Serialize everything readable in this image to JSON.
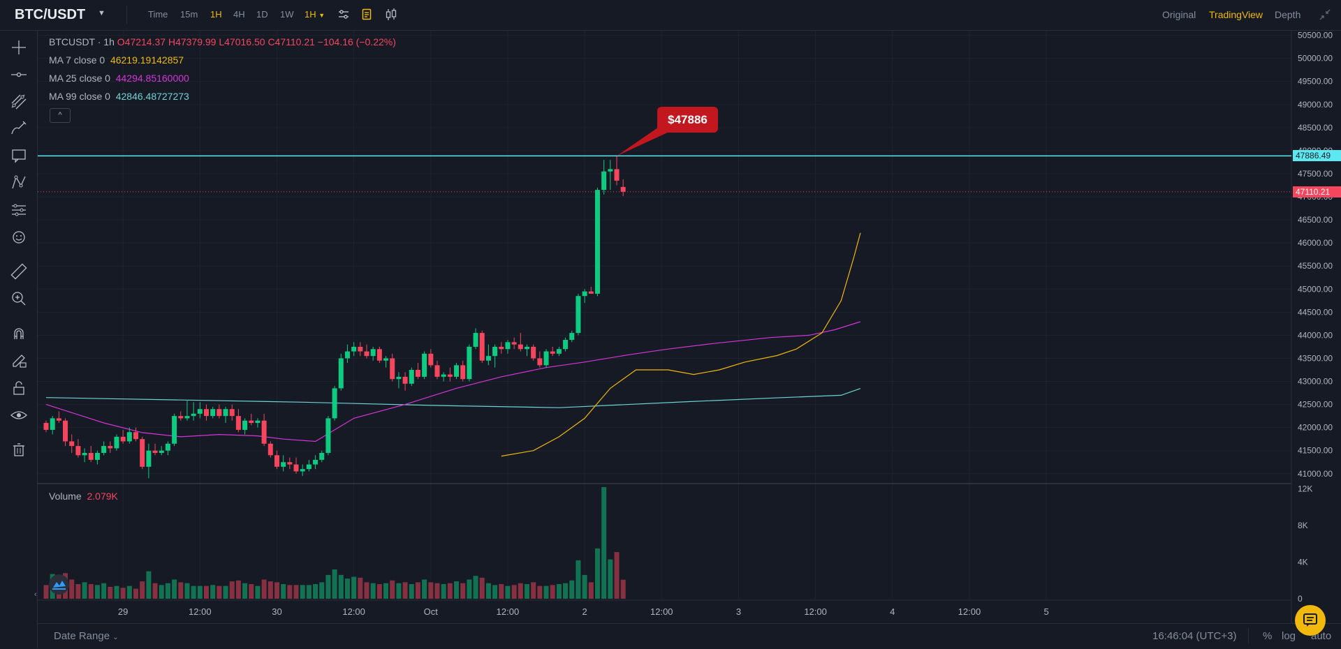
{
  "header": {
    "pair": "BTC/USDT",
    "timeframes": [
      "Time",
      "15m",
      "1H",
      "4H",
      "1D",
      "1W"
    ],
    "active_timeframe": "1H",
    "interval_dropdown": "1H",
    "views": [
      "Original",
      "TradingView",
      "Depth"
    ],
    "active_view": "TradingView"
  },
  "left_toolbar": {
    "tools": [
      "crosshair-icon",
      "horizontal-ray-icon",
      "trend-lines-icon",
      "brush-icon",
      "text-icon",
      "patterns-icon",
      "prediction-icon",
      "emoji-icon",
      "ruler-icon",
      "zoom-in-icon",
      "magnet-icon",
      "lock-drawings-pencil-icon",
      "unlock-icon",
      "eye-icon",
      "trash-icon"
    ]
  },
  "legend": {
    "symbol": "BTCUSDT · 1h",
    "open": "O47214.37",
    "high": "H47379.99",
    "low": "L47016.50",
    "close": "C47110.21",
    "change": "−104.16 (−0.22%)",
    "ma7_label": "MA 7 close 0",
    "ma7_value": "46219.19142857",
    "ma25_label": "MA 25 close 0",
    "ma25_value": "44294.85160000",
    "ma99_label": "MA 99 close 0",
    "ma99_value": "42846.48727273",
    "collapse": "^",
    "volume_label": "Volume",
    "volume_value": "2.079K"
  },
  "annotation": {
    "callout_text": "$47886",
    "horizontal_line_label": "47886.49",
    "last_price_label": "47110.21"
  },
  "bottom": {
    "date_range": "Date Range",
    "clock": "16:46:04 (UTC+3)",
    "percent": "%",
    "log": "log",
    "auto": "auto"
  },
  "colors": {
    "background": "#161a25",
    "up": "#0ecb81",
    "down": "#f6465d",
    "ma7": "#f0b90b",
    "ma25": "#d535d8",
    "ma99": "#6ed3d3",
    "horizontal_line": "#5ce8f0",
    "active": "#f0b90b"
  },
  "chart_data": {
    "type": "candlestick",
    "price_axis": {
      "ticks": [
        41000,
        41500,
        42000,
        42500,
        43000,
        43500,
        44000,
        44500,
        45000,
        45500,
        46000,
        46500,
        47000,
        47500,
        48000,
        48500,
        49000,
        49500,
        50000,
        50500
      ],
      "tick_labels": [
        "41000.00",
        "41500.00",
        "42000.00",
        "42500.00",
        "43000.00",
        "43500.00",
        "44000.00",
        "44500.00",
        "45000.00",
        "45500.00",
        "46000.00",
        "46500.00",
        "47000.00",
        "47500.00",
        "48000.00",
        "48500.00",
        "49000.00",
        "49500.00",
        "50000.00",
        "50500.00"
      ],
      "range": [
        40800,
        50600
      ]
    },
    "volume_axis": {
      "ticks": [
        0,
        4000,
        8000,
        12000
      ],
      "tick_labels": [
        "0",
        "4K",
        "8K",
        "12K"
      ],
      "range": [
        0,
        12500
      ]
    },
    "time_axis": {
      "labels": [
        "29",
        "12:00",
        "30",
        "12:00",
        "Oct",
        "12:00",
        "2",
        "12:00",
        "3",
        "12:00",
        "4",
        "12:00",
        "5"
      ],
      "bar_index": [
        12,
        24,
        36,
        48,
        60,
        72,
        84,
        96,
        108,
        120,
        132,
        144,
        156
      ]
    },
    "horizontal_line": 47886.49,
    "last_price": 47110.21,
    "candles": [
      {
        "o": 42100,
        "h": 42150,
        "l": 41900,
        "c": 41950,
        "v": 1500
      },
      {
        "o": 41950,
        "h": 42250,
        "l": 41850,
        "c": 42200,
        "v": 2700
      },
      {
        "o": 42200,
        "h": 42350,
        "l": 42100,
        "c": 42150,
        "v": 1900
      },
      {
        "o": 42150,
        "h": 42200,
        "l": 41600,
        "c": 41700,
        "v": 2800
      },
      {
        "o": 41700,
        "h": 41850,
        "l": 41450,
        "c": 41600,
        "v": 2100
      },
      {
        "o": 41600,
        "h": 41750,
        "l": 41350,
        "c": 41400,
        "v": 1600
      },
      {
        "o": 41400,
        "h": 41550,
        "l": 41250,
        "c": 41450,
        "v": 1800
      },
      {
        "o": 41450,
        "h": 41600,
        "l": 41250,
        "c": 41300,
        "v": 1600
      },
      {
        "o": 41300,
        "h": 41500,
        "l": 41200,
        "c": 41450,
        "v": 1500
      },
      {
        "o": 41450,
        "h": 41700,
        "l": 41400,
        "c": 41600,
        "v": 1700
      },
      {
        "o": 41600,
        "h": 41700,
        "l": 41450,
        "c": 41550,
        "v": 1300
      },
      {
        "o": 41550,
        "h": 41850,
        "l": 41500,
        "c": 41800,
        "v": 1400
      },
      {
        "o": 41800,
        "h": 41950,
        "l": 41650,
        "c": 41700,
        "v": 1200
      },
      {
        "o": 41700,
        "h": 42000,
        "l": 41650,
        "c": 41900,
        "v": 1400
      },
      {
        "o": 41900,
        "h": 42000,
        "l": 41700,
        "c": 41750,
        "v": 1100
      },
      {
        "o": 41750,
        "h": 41800,
        "l": 41100,
        "c": 41150,
        "v": 1900
      },
      {
        "o": 41150,
        "h": 41650,
        "l": 40900,
        "c": 41500,
        "v": 3000
      },
      {
        "o": 41500,
        "h": 41650,
        "l": 41400,
        "c": 41450,
        "v": 1700
      },
      {
        "o": 41450,
        "h": 41600,
        "l": 41400,
        "c": 41500,
        "v": 1500
      },
      {
        "o": 41500,
        "h": 41700,
        "l": 41400,
        "c": 41650,
        "v": 1700
      },
      {
        "o": 41650,
        "h": 42300,
        "l": 41600,
        "c": 42250,
        "v": 2100
      },
      {
        "o": 42250,
        "h": 42350,
        "l": 42150,
        "c": 42200,
        "v": 1800
      },
      {
        "o": 42200,
        "h": 42600,
        "l": 42150,
        "c": 42250,
        "v": 1700
      },
      {
        "o": 42250,
        "h": 42550,
        "l": 42150,
        "c": 42300,
        "v": 1400
      },
      {
        "o": 42300,
        "h": 42550,
        "l": 42200,
        "c": 42400,
        "v": 1400
      },
      {
        "o": 42400,
        "h": 42500,
        "l": 42150,
        "c": 42250,
        "v": 1400
      },
      {
        "o": 42250,
        "h": 42450,
        "l": 42200,
        "c": 42400,
        "v": 1500
      },
      {
        "o": 42400,
        "h": 42500,
        "l": 42200,
        "c": 42250,
        "v": 1400
      },
      {
        "o": 42250,
        "h": 42450,
        "l": 42100,
        "c": 42400,
        "v": 1400
      },
      {
        "o": 42400,
        "h": 42500,
        "l": 42150,
        "c": 42250,
        "v": 1900
      },
      {
        "o": 42250,
        "h": 42400,
        "l": 41900,
        "c": 41950,
        "v": 2000
      },
      {
        "o": 41950,
        "h": 42200,
        "l": 41850,
        "c": 42150,
        "v": 1700
      },
      {
        "o": 42150,
        "h": 42300,
        "l": 42050,
        "c": 42100,
        "v": 1600
      },
      {
        "o": 42100,
        "h": 42200,
        "l": 42000,
        "c": 42150,
        "v": 1400
      },
      {
        "o": 42150,
        "h": 42300,
        "l": 41600,
        "c": 41650,
        "v": 2100
      },
      {
        "o": 41650,
        "h": 41700,
        "l": 41350,
        "c": 41400,
        "v": 1900
      },
      {
        "o": 41400,
        "h": 41500,
        "l": 41100,
        "c": 41150,
        "v": 1800
      },
      {
        "o": 41150,
        "h": 41400,
        "l": 41050,
        "c": 41250,
        "v": 1600
      },
      {
        "o": 41250,
        "h": 41350,
        "l": 41100,
        "c": 41200,
        "v": 1500
      },
      {
        "o": 41200,
        "h": 41350,
        "l": 41000,
        "c": 41050,
        "v": 1500
      },
      {
        "o": 41050,
        "h": 41200,
        "l": 40950,
        "c": 41100,
        "v": 1500
      },
      {
        "o": 41100,
        "h": 41300,
        "l": 41050,
        "c": 41200,
        "v": 1500
      },
      {
        "o": 41200,
        "h": 41400,
        "l": 41100,
        "c": 41300,
        "v": 1600
      },
      {
        "o": 41300,
        "h": 41500,
        "l": 41250,
        "c": 41450,
        "v": 1800
      },
      {
        "o": 41450,
        "h": 42250,
        "l": 41400,
        "c": 42200,
        "v": 2600
      },
      {
        "o": 42200,
        "h": 42900,
        "l": 42150,
        "c": 42850,
        "v": 3200
      },
      {
        "o": 42850,
        "h": 43600,
        "l": 42800,
        "c": 43500,
        "v": 2600
      },
      {
        "o": 43500,
        "h": 43800,
        "l": 43400,
        "c": 43650,
        "v": 2200
      },
      {
        "o": 43650,
        "h": 43850,
        "l": 43550,
        "c": 43750,
        "v": 2400
      },
      {
        "o": 43750,
        "h": 43850,
        "l": 43550,
        "c": 43650,
        "v": 2300
      },
      {
        "o": 43650,
        "h": 43800,
        "l": 43500,
        "c": 43550,
        "v": 1800
      },
      {
        "o": 43550,
        "h": 43750,
        "l": 43450,
        "c": 43700,
        "v": 1700
      },
      {
        "o": 43700,
        "h": 43750,
        "l": 43400,
        "c": 43450,
        "v": 1600
      },
      {
        "o": 43450,
        "h": 43550,
        "l": 43300,
        "c": 43500,
        "v": 1700
      },
      {
        "o": 43500,
        "h": 43600,
        "l": 43000,
        "c": 43050,
        "v": 2000
      },
      {
        "o": 43050,
        "h": 43200,
        "l": 42850,
        "c": 43100,
        "v": 1700
      },
      {
        "o": 43100,
        "h": 43200,
        "l": 42800,
        "c": 42950,
        "v": 1800
      },
      {
        "o": 42950,
        "h": 43300,
        "l": 42900,
        "c": 43250,
        "v": 1600
      },
      {
        "o": 43250,
        "h": 43400,
        "l": 43050,
        "c": 43100,
        "v": 1800
      },
      {
        "o": 43100,
        "h": 43650,
        "l": 43050,
        "c": 43600,
        "v": 2100
      },
      {
        "o": 43600,
        "h": 43700,
        "l": 43300,
        "c": 43350,
        "v": 1800
      },
      {
        "o": 43350,
        "h": 43450,
        "l": 43050,
        "c": 43100,
        "v": 1700
      },
      {
        "o": 43100,
        "h": 43200,
        "l": 43000,
        "c": 43150,
        "v": 1600
      },
      {
        "o": 43150,
        "h": 43300,
        "l": 43000,
        "c": 43100,
        "v": 1700
      },
      {
        "o": 43100,
        "h": 43400,
        "l": 43050,
        "c": 43350,
        "v": 1900
      },
      {
        "o": 43350,
        "h": 43450,
        "l": 43000,
        "c": 43050,
        "v": 1700
      },
      {
        "o": 43050,
        "h": 43800,
        "l": 43000,
        "c": 43750,
        "v": 2100
      },
      {
        "o": 43750,
        "h": 44150,
        "l": 43700,
        "c": 44050,
        "v": 2500
      },
      {
        "o": 44050,
        "h": 44100,
        "l": 43400,
        "c": 43450,
        "v": 2300
      },
      {
        "o": 43450,
        "h": 43800,
        "l": 43350,
        "c": 43550,
        "v": 1700
      },
      {
        "o": 43550,
        "h": 43800,
        "l": 43300,
        "c": 43750,
        "v": 1500
      },
      {
        "o": 43750,
        "h": 43850,
        "l": 43600,
        "c": 43700,
        "v": 1600
      },
      {
        "o": 43700,
        "h": 43900,
        "l": 43600,
        "c": 43850,
        "v": 1400
      },
      {
        "o": 43850,
        "h": 43950,
        "l": 43700,
        "c": 43800,
        "v": 1500
      },
      {
        "o": 43800,
        "h": 44050,
        "l": 43650,
        "c": 43700,
        "v": 1700
      },
      {
        "o": 43700,
        "h": 43800,
        "l": 43550,
        "c": 43750,
        "v": 1600
      },
      {
        "o": 43750,
        "h": 43800,
        "l": 43450,
        "c": 43500,
        "v": 1800
      },
      {
        "o": 43500,
        "h": 43650,
        "l": 43300,
        "c": 43350,
        "v": 1400
      },
      {
        "o": 43350,
        "h": 43700,
        "l": 43300,
        "c": 43650,
        "v": 1400
      },
      {
        "o": 43650,
        "h": 43750,
        "l": 43550,
        "c": 43600,
        "v": 1500
      },
      {
        "o": 43600,
        "h": 43750,
        "l": 43550,
        "c": 43700,
        "v": 1600
      },
      {
        "o": 43700,
        "h": 43950,
        "l": 43650,
        "c": 43900,
        "v": 1700
      },
      {
        "o": 43900,
        "h": 44100,
        "l": 43850,
        "c": 44050,
        "v": 2000
      },
      {
        "o": 44050,
        "h": 44900,
        "l": 44000,
        "c": 44850,
        "v": 4200
      },
      {
        "o": 44850,
        "h": 45000,
        "l": 44700,
        "c": 44950,
        "v": 2600
      },
      {
        "o": 44950,
        "h": 45050,
        "l": 44900,
        "c": 44900,
        "v": 1800
      },
      {
        "o": 44900,
        "h": 47200,
        "l": 44850,
        "c": 47150,
        "v": 5500
      },
      {
        "o": 47150,
        "h": 47800,
        "l": 47050,
        "c": 47550,
        "v": 12200
      },
      {
        "o": 47550,
        "h": 47800,
        "l": 47150,
        "c": 47600,
        "v": 4300
      },
      {
        "o": 47600,
        "h": 47886,
        "l": 47250,
        "c": 47350,
        "v": 5100
      },
      {
        "o": 47214,
        "h": 47380,
        "l": 47016,
        "c": 47110,
        "v": 2079
      }
    ],
    "ma7": [
      [
        71,
        41380
      ],
      [
        76,
        41500
      ],
      [
        80,
        41800
      ],
      [
        84,
        42200
      ],
      [
        88,
        42850
      ],
      [
        92,
        43250
      ],
      [
        97,
        43250
      ],
      [
        101,
        43150
      ],
      [
        105,
        43250
      ],
      [
        109,
        43420
      ],
      [
        114,
        43560
      ],
      [
        117,
        43700
      ],
      [
        121,
        44050
      ],
      [
        124,
        44750
      ],
      [
        126,
        45700
      ],
      [
        127,
        46219
      ]
    ],
    "ma25": [
      [
        0,
        42500
      ],
      [
        9,
        42100
      ],
      [
        15,
        41890
      ],
      [
        21,
        41800
      ],
      [
        27,
        41850
      ],
      [
        33,
        41820
      ],
      [
        37,
        41750
      ],
      [
        42,
        41700
      ],
      [
        48,
        42200
      ],
      [
        56,
        42500
      ],
      [
        64,
        42850
      ],
      [
        71,
        43100
      ],
      [
        78,
        43300
      ],
      [
        84,
        43420
      ],
      [
        91,
        43580
      ],
      [
        97,
        43700
      ],
      [
        104,
        43820
      ],
      [
        113,
        43950
      ],
      [
        119,
        44000
      ],
      [
        123,
        44120
      ],
      [
        127,
        44294
      ]
    ],
    "ma99": [
      [
        0,
        42650
      ],
      [
        20,
        42600
      ],
      [
        40,
        42550
      ],
      [
        60,
        42480
      ],
      [
        80,
        42430
      ],
      [
        100,
        42560
      ],
      [
        115,
        42650
      ],
      [
        124,
        42700
      ],
      [
        127,
        42846
      ]
    ]
  }
}
